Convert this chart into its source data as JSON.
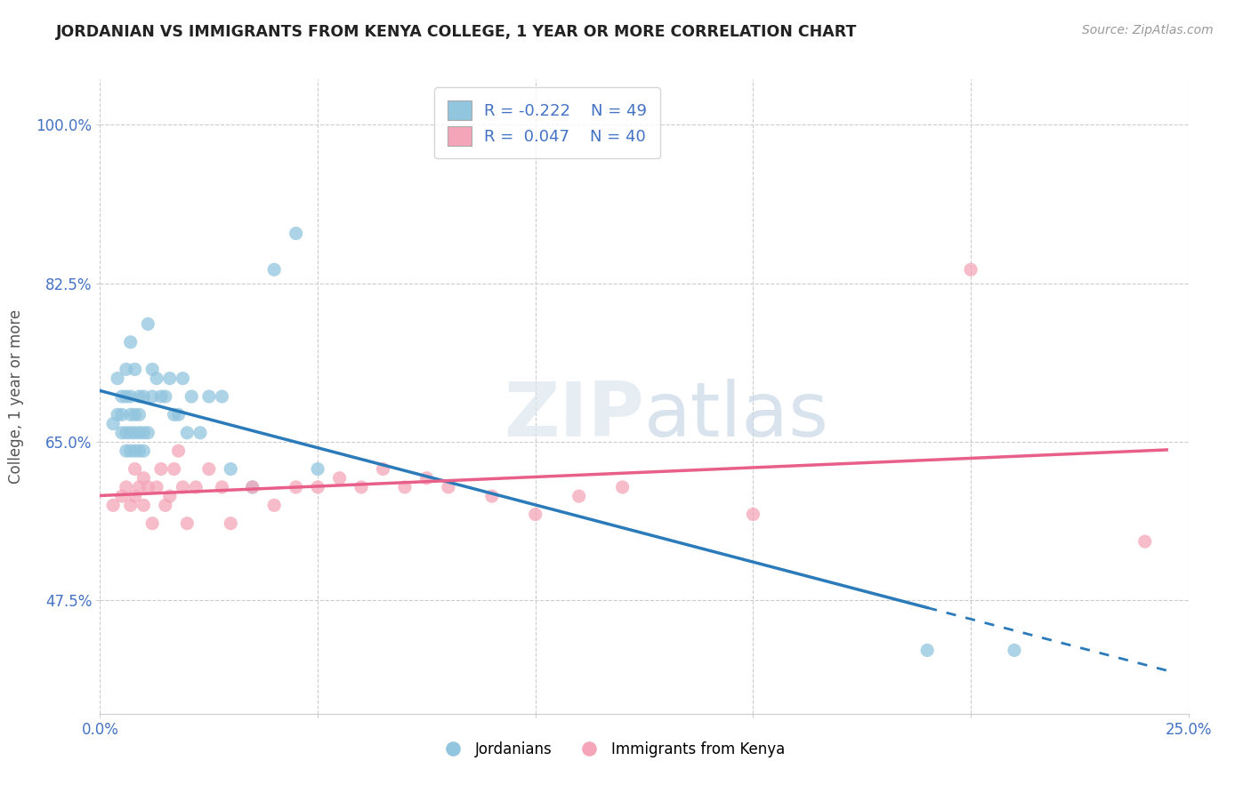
{
  "title": "JORDANIAN VS IMMIGRANTS FROM KENYA COLLEGE, 1 YEAR OR MORE CORRELATION CHART",
  "source_text": "Source: ZipAtlas.com",
  "ylabel": "College, 1 year or more",
  "watermark": "ZIPatlas",
  "xlim": [
    0.0,
    0.25
  ],
  "ylim": [
    0.35,
    1.05
  ],
  "color_jordan": "#92c5de",
  "color_kenya": "#f4a6b8",
  "trendline_jordan_color": "#2b7bba",
  "trendline_kenya_color": "#e8608a",
  "background_color": "#ffffff",
  "grid_color": "#cccccc",
  "legend_label1": "Jordanians",
  "legend_label2": "Immigrants from Kenya",
  "jordan_x": [
    0.003,
    0.004,
    0.004,
    0.005,
    0.005,
    0.005,
    0.006,
    0.006,
    0.006,
    0.006,
    0.007,
    0.007,
    0.007,
    0.007,
    0.007,
    0.008,
    0.008,
    0.008,
    0.008,
    0.009,
    0.009,
    0.009,
    0.009,
    0.01,
    0.01,
    0.01,
    0.011,
    0.011,
    0.012,
    0.012,
    0.013,
    0.014,
    0.015,
    0.016,
    0.017,
    0.018,
    0.019,
    0.02,
    0.021,
    0.023,
    0.025,
    0.028,
    0.03,
    0.035,
    0.04,
    0.045,
    0.05,
    0.19,
    0.21
  ],
  "jordan_y": [
    0.67,
    0.68,
    0.72,
    0.66,
    0.68,
    0.7,
    0.64,
    0.66,
    0.7,
    0.73,
    0.64,
    0.66,
    0.68,
    0.7,
    0.76,
    0.64,
    0.66,
    0.68,
    0.73,
    0.64,
    0.66,
    0.68,
    0.7,
    0.64,
    0.66,
    0.7,
    0.66,
    0.78,
    0.7,
    0.73,
    0.72,
    0.7,
    0.7,
    0.72,
    0.68,
    0.68,
    0.72,
    0.66,
    0.7,
    0.66,
    0.7,
    0.7,
    0.62,
    0.6,
    0.84,
    0.88,
    0.62,
    0.42,
    0.42
  ],
  "kenya_x": [
    0.003,
    0.005,
    0.006,
    0.007,
    0.008,
    0.008,
    0.009,
    0.01,
    0.01,
    0.011,
    0.012,
    0.013,
    0.014,
    0.015,
    0.016,
    0.017,
    0.018,
    0.019,
    0.02,
    0.022,
    0.025,
    0.028,
    0.03,
    0.035,
    0.04,
    0.045,
    0.05,
    0.055,
    0.06,
    0.065,
    0.07,
    0.075,
    0.08,
    0.09,
    0.1,
    0.11,
    0.12,
    0.15,
    0.2,
    0.24
  ],
  "kenya_y": [
    0.58,
    0.59,
    0.6,
    0.58,
    0.59,
    0.62,
    0.6,
    0.58,
    0.61,
    0.6,
    0.56,
    0.6,
    0.62,
    0.58,
    0.59,
    0.62,
    0.64,
    0.6,
    0.56,
    0.6,
    0.62,
    0.6,
    0.56,
    0.6,
    0.58,
    0.6,
    0.6,
    0.61,
    0.6,
    0.62,
    0.6,
    0.61,
    0.6,
    0.59,
    0.57,
    0.59,
    0.6,
    0.57,
    0.84,
    0.54
  ]
}
